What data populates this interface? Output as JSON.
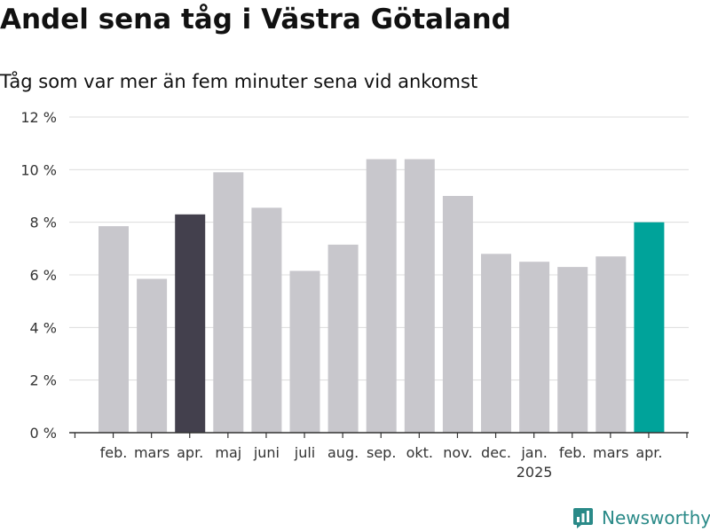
{
  "title": "Andel sena tåg i Västra Götaland",
  "subtitle": "Tåg som var mer än fem minuter sena vid ankomst",
  "brand": {
    "name": "Newsworthy",
    "icon": "bar-chart-icon",
    "color": "#2a8a88"
  },
  "chart_data": {
    "type": "bar",
    "categories": [
      "feb.",
      "mars",
      "apr.",
      "maj",
      "juni",
      "juli",
      "aug.",
      "sep.",
      "okt.",
      "nov.",
      "dec.",
      "jan.",
      "feb.",
      "mars",
      "apr."
    ],
    "x_sublabels": [
      "",
      "",
      "",
      "",
      "",
      "",
      "",
      "",
      "",
      "",
      "",
      "2025",
      "",
      "",
      ""
    ],
    "values": [
      7.85,
      5.85,
      8.3,
      9.9,
      8.55,
      6.15,
      7.15,
      10.4,
      10.4,
      9.0,
      6.8,
      6.5,
      6.3,
      6.7,
      8.0
    ],
    "bar_colors": [
      "#c8c7cc",
      "#c8c7cc",
      "#43404d",
      "#c8c7cc",
      "#c8c7cc",
      "#c8c7cc",
      "#c8c7cc",
      "#c8c7cc",
      "#c8c7cc",
      "#c8c7cc",
      "#c8c7cc",
      "#c8c7cc",
      "#c8c7cc",
      "#c8c7cc",
      "#00a39a"
    ],
    "y_ticks": [
      0,
      2,
      4,
      6,
      8,
      10,
      12
    ],
    "y_tick_labels": [
      "0 %",
      "2 %",
      "4 %",
      "6 %",
      "8 %",
      "10 %",
      "12 %"
    ],
    "ylim": [
      0,
      12
    ],
    "grid": true,
    "xlabel": "",
    "ylabel": ""
  }
}
